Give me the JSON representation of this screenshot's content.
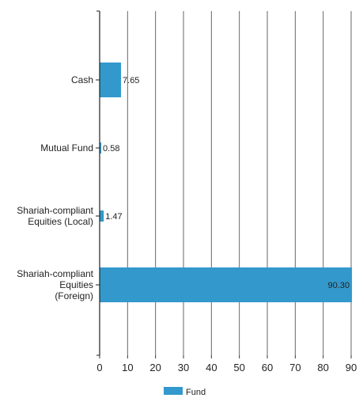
{
  "chart_data": {
    "type": "bar",
    "orientation": "horizontal",
    "categories": [
      [
        "Cash"
      ],
      [
        "Mutual Fund"
      ],
      [
        "Shariah-compliant",
        "Equities (Local)"
      ],
      [
        "Shariah-compliant",
        "Equities",
        "(Foreign)"
      ]
    ],
    "series": [
      {
        "name": "Fund",
        "values": [
          7.65,
          0.58,
          1.47,
          90.3
        ],
        "labels": [
          "7.65",
          "0.58",
          "1.47",
          "90.30"
        ],
        "color": "#3399cc"
      }
    ],
    "xlim": [
      0,
      90
    ],
    "xticks": [
      0,
      10,
      20,
      30,
      40,
      50,
      60,
      70,
      80,
      90
    ],
    "grid": "vertical",
    "legend": "bottom-center",
    "title": "",
    "xlabel": "",
    "ylabel": ""
  }
}
